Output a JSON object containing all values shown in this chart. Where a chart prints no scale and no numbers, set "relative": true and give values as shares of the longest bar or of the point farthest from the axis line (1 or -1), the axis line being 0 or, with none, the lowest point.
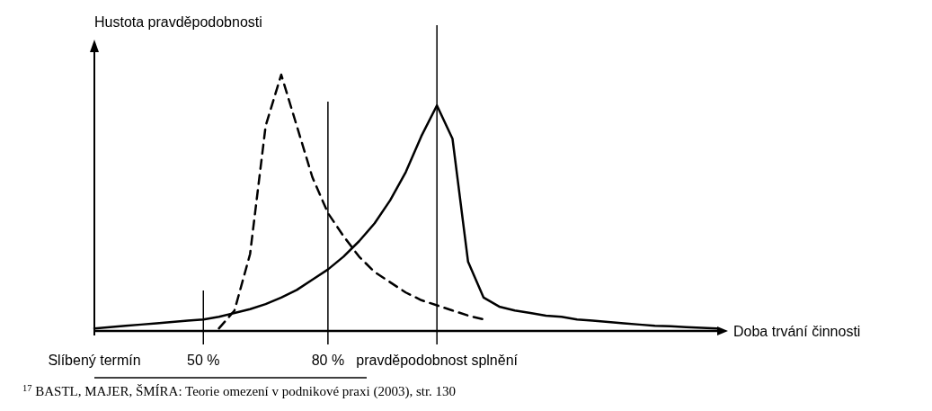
{
  "chart_data": {
    "type": "line",
    "relative": true,
    "ylabel": "Hustota pravděpodobnosti",
    "xlabel": "Doba trvání činnosti",
    "categories": [
      "Slíbený termín",
      null,
      null,
      null,
      null,
      null,
      null,
      "50 %",
      null,
      null,
      null,
      null,
      null,
      null,
      null,
      "80 %",
      null,
      null,
      null,
      null,
      null,
      null,
      "pravděpodobnost splnění",
      null,
      null,
      null,
      null,
      null,
      null,
      null,
      null,
      null,
      null,
      null,
      null,
      null,
      null,
      null,
      null,
      null,
      null
    ],
    "series": [
      {
        "color": "#000000",
        "line_style": "dashed",
        "values": [
          null,
          null,
          null,
          null,
          null,
          null,
          null,
          null,
          0.01,
          0.08,
          0.3,
          0.8,
          1,
          0.8,
          0.6,
          0.46,
          0.37,
          0.29,
          0.23,
          0.19,
          0.15,
          0.12,
          0.1,
          0.08,
          0.06,
          0.045,
          null,
          null,
          null,
          null,
          null,
          null,
          null,
          null,
          null,
          null,
          null,
          null,
          null,
          null,
          null
        ]
      },
      {
        "color": "#000000",
        "line_style": "solid",
        "values": [
          0.01,
          0.015,
          0.02,
          0.025,
          0.03,
          0.035,
          0.04,
          0.045,
          0.055,
          0.07,
          0.085,
          0.105,
          0.13,
          0.16,
          0.2,
          0.24,
          0.29,
          0.35,
          0.42,
          0.51,
          0.62,
          0.76,
          0.88,
          0.75,
          0.27,
          0.13,
          0.095,
          0.08,
          0.07,
          0.06,
          0.055,
          0.045,
          0.04,
          0.035,
          0.03,
          0.025,
          0.02,
          0.018,
          0.015,
          0.012,
          0.01
        ]
      }
    ],
    "ref_lines": [
      {
        "axis": "x",
        "value": "50 %"
      },
      {
        "axis": "x",
        "value": "80 %"
      },
      {
        "axis": "x",
        "value": "pravděpodobnost splnění"
      }
    ],
    "annotations": [
      "$^{17}$ BASTL, MAJER, ŠMÍRA: Teorie omezení v podnikové praxi (2003), str. 130"
    ]
  }
}
